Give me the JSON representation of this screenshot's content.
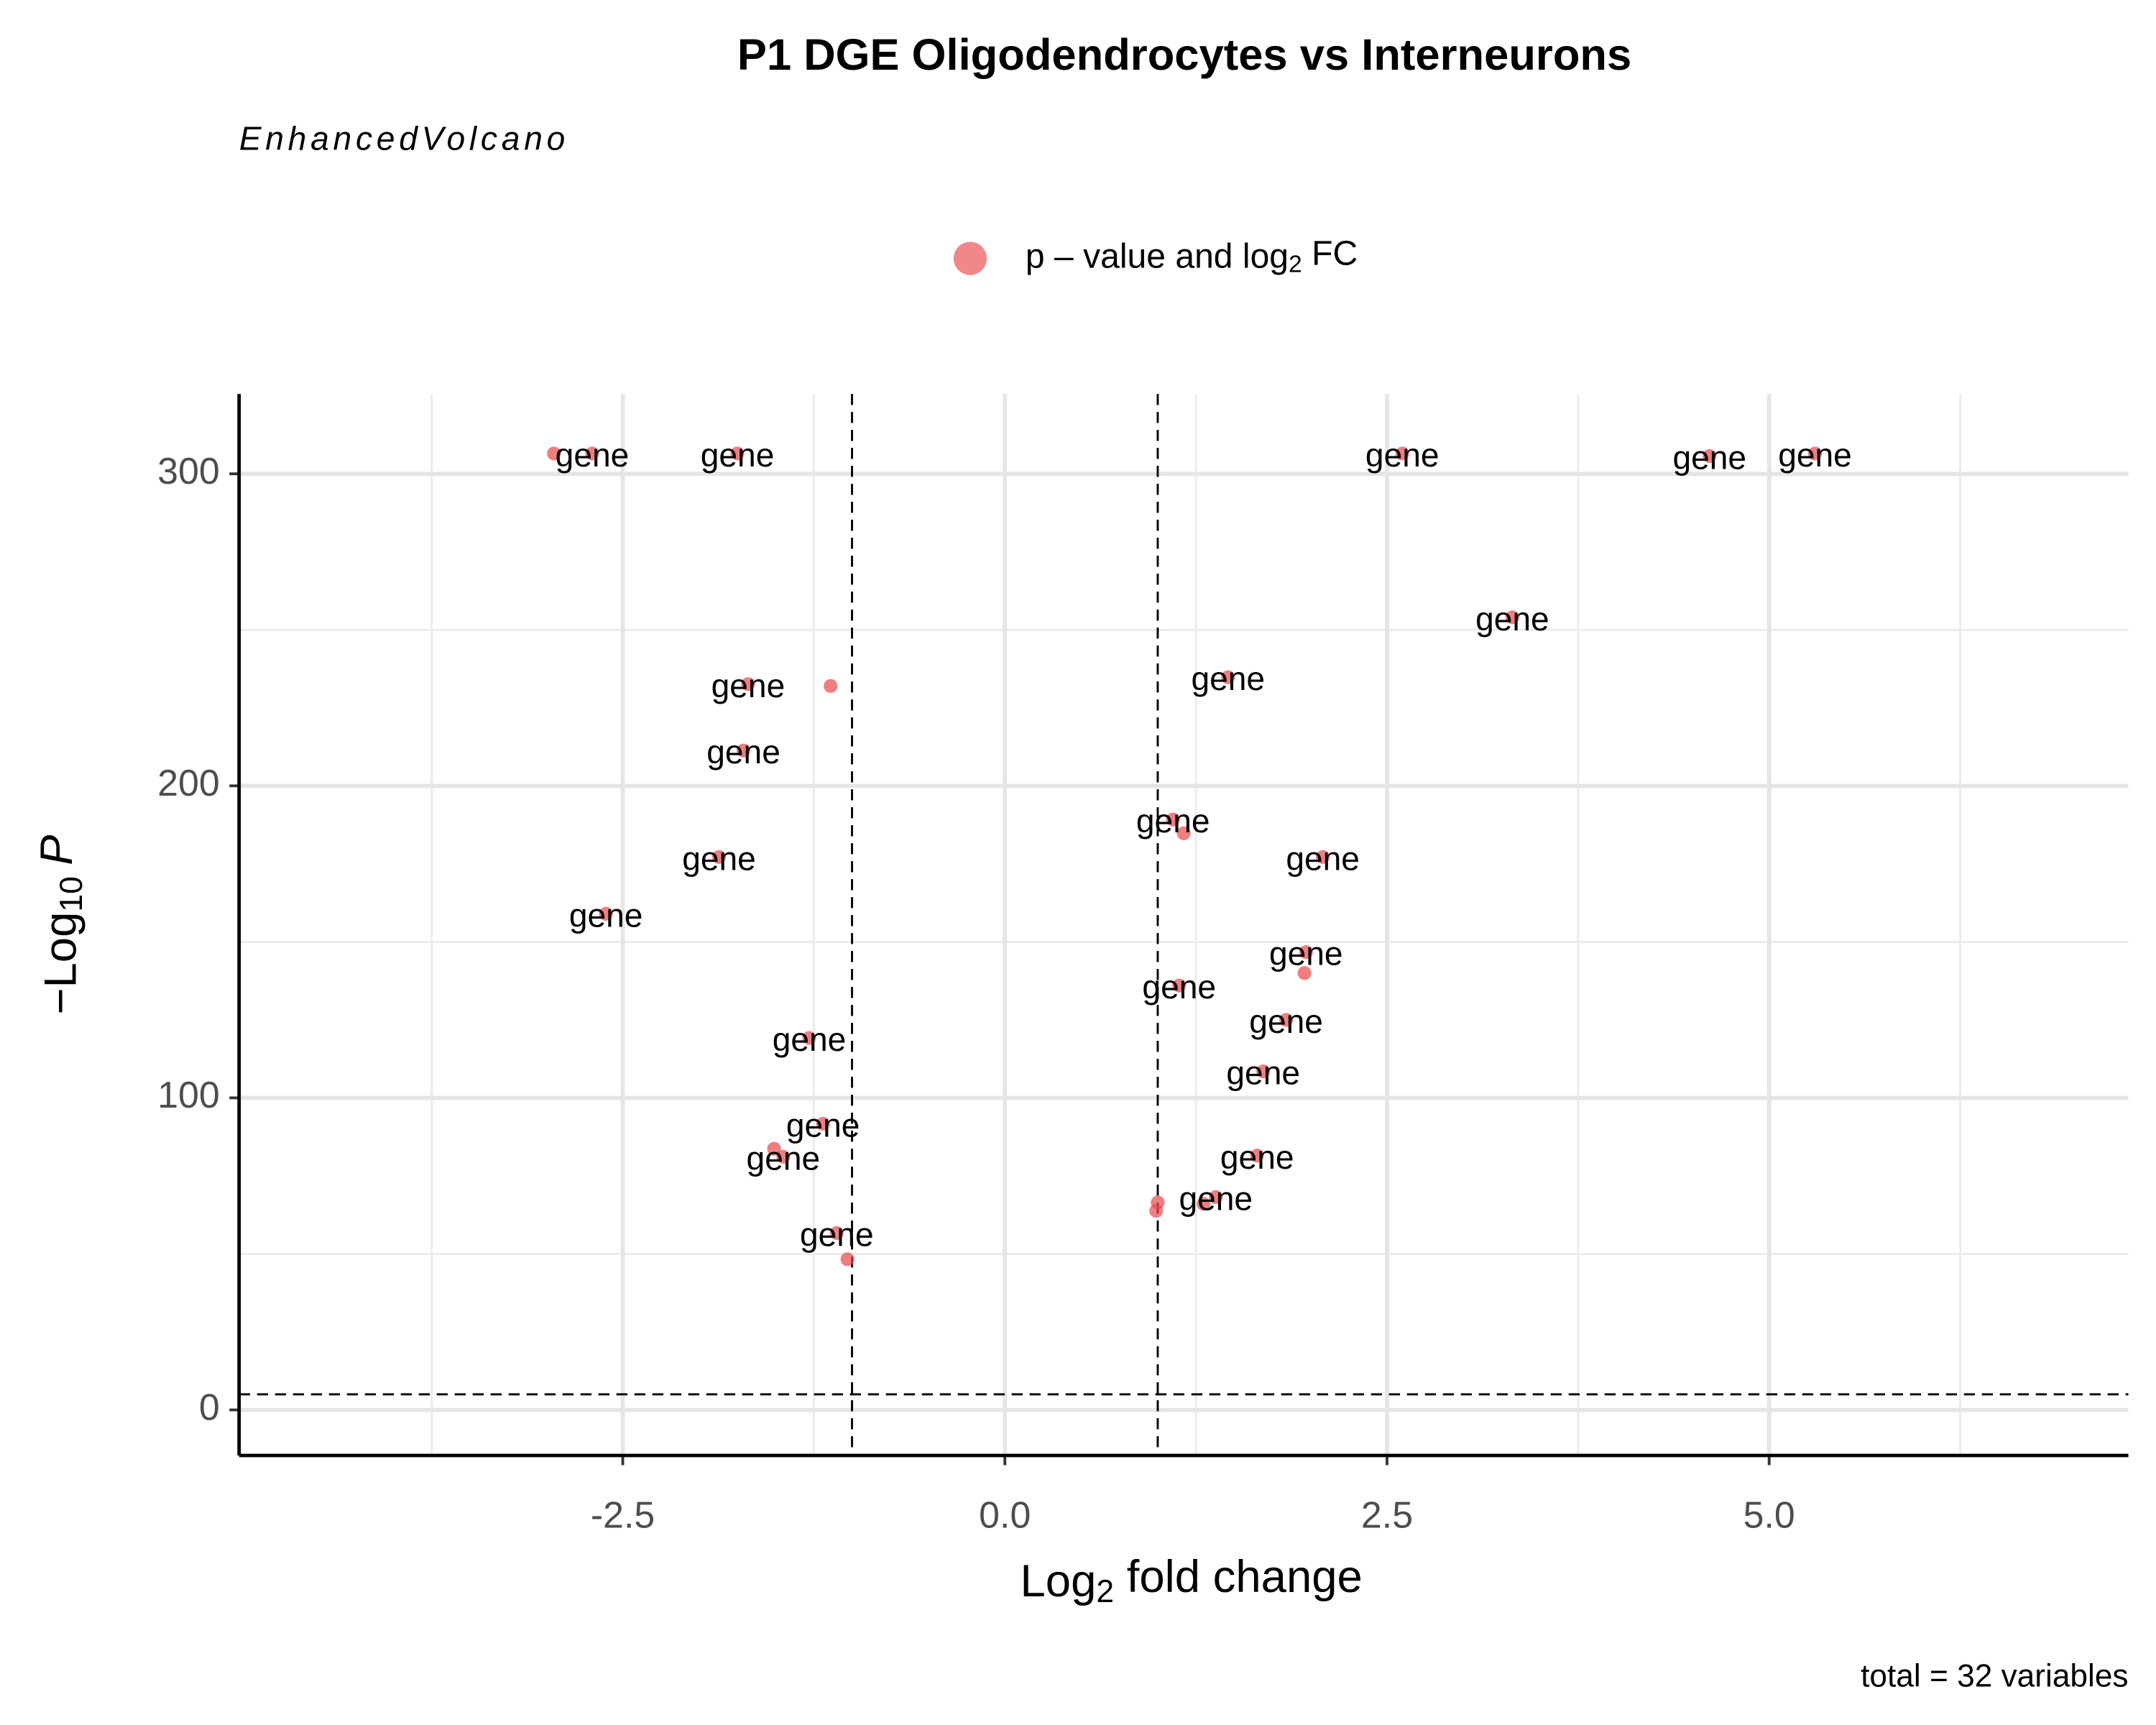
{
  "chart_data": {
    "type": "scatter",
    "title": "P1 DGE Oligodendrocytes vs Interneurons",
    "subtitle": "EnhancedVolcano",
    "caption": "total = 32 variables",
    "legend": {
      "prefix": "p – value and log",
      "sub": "2",
      "suffix": " FC"
    },
    "x_label": {
      "prefix": "Log",
      "sub": "2",
      "suffix": " fold change"
    },
    "y_label": {
      "prefix": "−Log",
      "sub": "10",
      "suffix": "P"
    },
    "color": "#e8474c",
    "x": [
      -2.95,
      -2.7,
      -1.75,
      2.6,
      4.61,
      5.3,
      3.32,
      -1.68,
      -1.14,
      1.46,
      -1.71,
      1.1,
      1.17,
      2.08,
      -1.87,
      -2.61,
      1.97,
      1.96,
      1.14,
      1.84,
      -1.28,
      1.69,
      -1.19,
      -1.51,
      -1.45,
      1.65,
      1.38,
      1.3,
      1.0,
      0.99,
      -1.1,
      -1.03
    ],
    "values": [
      306.5,
      306.5,
      306.5,
      306.5,
      305.7,
      306.5,
      254,
      232.6,
      232,
      234.8,
      211.3,
      189.2,
      184.8,
      177.2,
      177.2,
      159,
      146.7,
      140,
      136,
      125,
      119.2,
      108.5,
      91.7,
      83.7,
      81.1,
      81.5,
      68.2,
      66,
      66.5,
      63.8,
      56.7,
      48.3
    ],
    "labels": [
      null,
      "gene",
      "gene",
      "gene",
      "gene",
      "gene",
      "gene",
      "gene",
      null,
      "gene",
      "gene",
      "gene",
      null,
      "gene",
      "gene",
      "gene",
      "gene",
      null,
      "gene",
      "gene",
      "gene",
      "gene",
      "gene",
      null,
      "gene",
      "gene",
      "gene",
      null,
      null,
      null,
      "gene",
      null
    ],
    "xlim": [
      -5.01,
      7.35
    ],
    "ylim": [
      -14.6,
      325.6
    ],
    "xticks": [
      {
        "value": -2.5,
        "label": "-2.5"
      },
      {
        "value": 0,
        "label": "0.0"
      },
      {
        "value": 2.5,
        "label": "2.5"
      },
      {
        "value": 5,
        "label": "5.0"
      }
    ],
    "x_minor_ticks": [
      -3.75,
      -1.25,
      1.25,
      3.75,
      6.25
    ],
    "yticks": [
      0,
      100,
      200,
      300
    ],
    "y_minor_ticks": [
      50,
      150,
      250
    ],
    "fc_cutoff": [
      -1,
      1
    ],
    "p_cutoff": 5,
    "grid": true
  }
}
